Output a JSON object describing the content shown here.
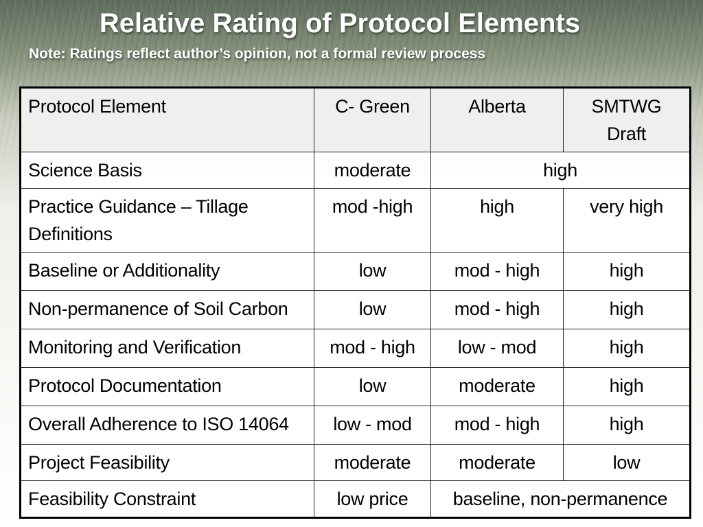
{
  "slide": {
    "title": "Relative Rating of Protocol Elements",
    "subtitle": "Note:  Ratings reflect author’s opinion, not a formal review process"
  },
  "table": {
    "headers": [
      "Protocol Element",
      "C- Green",
      "Alberta",
      "SMTWG Draft"
    ],
    "rows": [
      {
        "element": "Science Basis",
        "c_green": "moderate",
        "alberta_smtwg_merged": "high"
      },
      {
        "element": "Practice Guidance – Tillage Definitions",
        "c_green": "mod -high",
        "alberta": "high",
        "smtwg": "very high"
      },
      {
        "element": "Baseline or Additionality",
        "c_green": "low",
        "alberta": "mod - high",
        "smtwg": "high"
      },
      {
        "element": "Non-permanence of Soil Carbon",
        "c_green": "low",
        "alberta": "mod - high",
        "smtwg": "high"
      },
      {
        "element": "Monitoring and Verification",
        "c_green": "mod -  high",
        "alberta": "low - mod",
        "smtwg": "high"
      },
      {
        "element": "Protocol Documentation",
        "c_green": "low",
        "alberta": "moderate",
        "smtwg": "high"
      },
      {
        "element": "Overall Adherence to ISO 14064",
        "c_green": "low - mod",
        "alberta": "mod - high",
        "smtwg": "high"
      },
      {
        "element": "Project Feasibility",
        "c_green": "moderate",
        "alberta": "moderate",
        "smtwg": "low"
      },
      {
        "element": "Feasibility Constraint",
        "c_green": "low price",
        "alberta_smtwg_merged": "baseline, non-permanence"
      }
    ]
  }
}
